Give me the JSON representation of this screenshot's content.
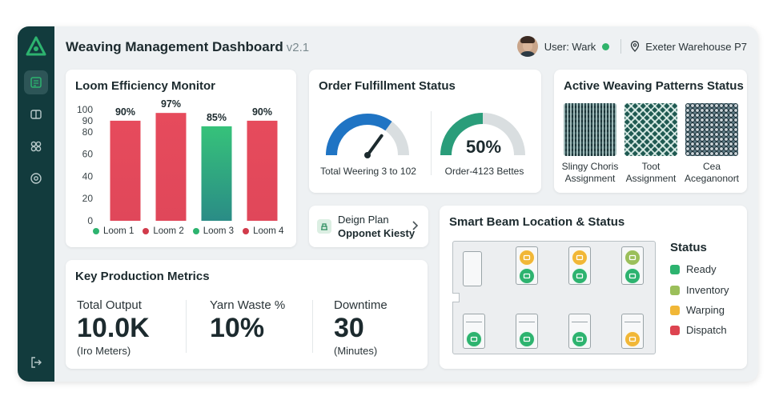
{
  "colors": {
    "sidebar": "#123b3d",
    "accent_green": "#2db36f",
    "teal": "#2a8c86",
    "red": "#e0475a",
    "gauge_blue": "#1f74c4",
    "inventory": "#9bbf5a",
    "warping": "#f1b737",
    "dispatch": "#dd4450"
  },
  "sidebar": {
    "items": [
      {
        "name": "dashboard-icon",
        "active": true
      },
      {
        "name": "looms-icon",
        "active": false
      },
      {
        "name": "patterns-icon",
        "active": false
      },
      {
        "name": "monitor-icon",
        "active": false
      }
    ],
    "logout": "logout-icon"
  },
  "header": {
    "title": "Weaving Management Dashboard",
    "version": "v2.1",
    "user_label": "User: Wark",
    "location": "Exeter Warehouse P7"
  },
  "loom_efficiency": {
    "title": "Loom Efficiency Monitor",
    "chart_data": {
      "type": "bar",
      "title": "Loom Efficiency Monitor",
      "categories": [
        "Loom 1",
        "Loom 2",
        "Loom 3",
        "Loom 4"
      ],
      "values": [
        90,
        97,
        85,
        90
      ],
      "data_labels": [
        "90%",
        "97%",
        "85%",
        "90%"
      ],
      "ylim": [
        0,
        100
      ],
      "y_ticks": [
        0,
        20,
        40,
        60,
        80,
        90,
        100
      ],
      "legend": "bottom",
      "grid": false,
      "colors": [
        "#e0475a",
        "#e0475a",
        "#2db36f",
        "#e0475a"
      ],
      "legend_colors": [
        "#2db36f",
        "#d13b4b",
        "#2db36f",
        "#d13b4b"
      ]
    }
  },
  "order_fulfillment": {
    "title": "Order Fulfillment Status",
    "gauge1_label": "Total Weering 3 to 102",
    "gauge2_value": "50%",
    "gauge2_label": "Order-4123 Bettes",
    "gauge1_fraction": 0.7,
    "gauge2_fraction": 0.5
  },
  "patterns": {
    "title": "Active Weaving Patterns Status",
    "items": [
      {
        "line1": "Slingy Choris",
        "line2": "Assignment"
      },
      {
        "line1": "Toot",
        "line2": "Assignment"
      },
      {
        "line1": "Cea",
        "line2": "Aceganonort"
      }
    ]
  },
  "design_plan": {
    "line1": "Deign Plan",
    "line2": "Opponet Kiesty"
  },
  "metrics": {
    "title": "Key Production Metrics",
    "items": [
      {
        "label": "Total Output",
        "value": "10.0K",
        "unit": "(Iro Meters)"
      },
      {
        "label": "Yarn Waste %",
        "value": "10%",
        "unit": ""
      },
      {
        "label": "Downtime",
        "value": "30",
        "unit": "(Minutes)"
      }
    ]
  },
  "smart_beam": {
    "title": "Smart Beam Location & Status",
    "status_title": "Status",
    "legend": [
      {
        "label": "Ready",
        "color": "#2db36f"
      },
      {
        "label": "Inventory",
        "color": "#9bbf5a"
      },
      {
        "label": "Warping",
        "color": "#f1b737"
      },
      {
        "label": "Dispatch",
        "color": "#dd4450"
      }
    ]
  }
}
